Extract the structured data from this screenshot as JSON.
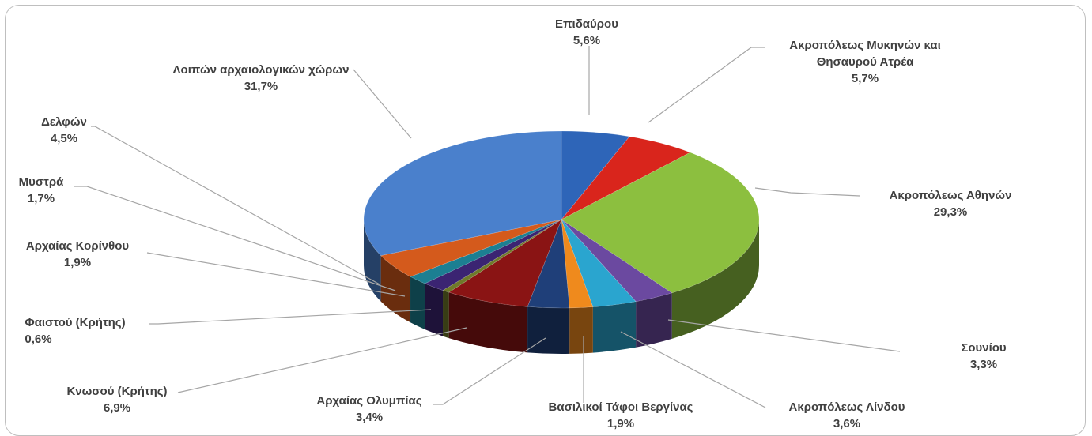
{
  "chart_data": {
    "type": "pie",
    "title": "",
    "slices": [
      {
        "name": "Επιδαύρου",
        "value": 5.6,
        "label": "5,6%",
        "color": "#2e65b8"
      },
      {
        "name": "Ακροπόλεως Μυκηνών και Θησαυρού Ατρέα",
        "value": 5.7,
        "label": "5,7%",
        "color": "#d9251c"
      },
      {
        "name": "Ακροπόλεως Αθηνών",
        "value": 29.3,
        "label": "29,3%",
        "color": "#8cbf3f"
      },
      {
        "name": "Σουνίου",
        "value": 3.3,
        "label": "3,3%",
        "color": "#6b49a0"
      },
      {
        "name": "Ακροπόλεως Λίνδου",
        "value": 3.6,
        "label": "3,6%",
        "color": "#2aa5cf"
      },
      {
        "name": "Βασιλικοί Τάφοι Βεργίνας",
        "value": 1.9,
        "label": "1,9%",
        "color": "#ef8a1d"
      },
      {
        "name": "Αρχαίας Ολυμπίας",
        "value": 3.4,
        "label": "3,4%",
        "color": "#1f3f79"
      },
      {
        "name": "Κνωσού (Κρήτης)",
        "value": 6.9,
        "label": "6,9%",
        "color": "#8a1414"
      },
      {
        "name": "Φαιστού (Κρήτης)",
        "value": 0.6,
        "label": "0,6%",
        "color": "#6f7a2a"
      },
      {
        "name": "Αρχαίας Κορίνθου",
        "value": 1.9,
        "label": "1,9%",
        "color": "#3b2472"
      },
      {
        "name": "Μυστρά",
        "value": 1.7,
        "label": "1,7%",
        "color": "#1c7f92"
      },
      {
        "name": "Δελφών",
        "value": 4.5,
        "label": "4,5%",
        "color": "#d45a1c"
      },
      {
        "name": "Λοιπών αρχαιολογικών χώρων",
        "value": 31.7,
        "label": "31,7%",
        "color": "#4a80cc"
      }
    ]
  }
}
